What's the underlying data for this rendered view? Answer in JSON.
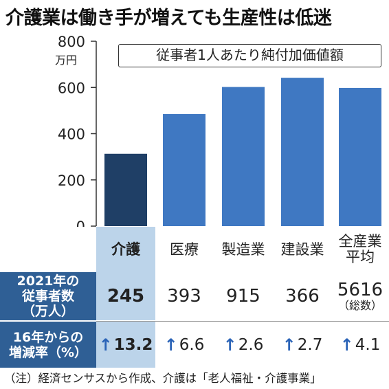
{
  "title": "介護業は働き手が増えても生産性は低迷",
  "chart_data": {
    "type": "bar",
    "title": "介護業は働き手が増えても生産性は低迷",
    "legend_text": "従事者1人あたり純付加価値額",
    "ylabel": "",
    "y_unit": "万円",
    "ylim": [
      0,
      800
    ],
    "yticks": [
      "0",
      "200",
      "400",
      "600",
      "800"
    ],
    "categories": [
      "介護",
      "医療",
      "製造業",
      "建設業",
      "全産業 平均"
    ],
    "values": [
      313,
      485,
      602,
      642,
      598
    ],
    "highlight_index": 0,
    "colors": {
      "highlight": "#1f3f66",
      "normal": "#3f78c2"
    },
    "grid": false
  },
  "table": {
    "header_categories": [
      {
        "line1": "介護",
        "line2": ""
      },
      {
        "line1": "医療",
        "line2": ""
      },
      {
        "line1": "製造業",
        "line2": ""
      },
      {
        "line1": "建設業",
        "line2": ""
      },
      {
        "line1": "全産業",
        "line2": "平均"
      }
    ],
    "workers": {
      "label_lines": [
        "2021年の",
        "従事者数",
        "（万人）"
      ],
      "values": [
        "245",
        "393",
        "915",
        "366",
        "5616"
      ],
      "last_note": "（総数）"
    },
    "growth": {
      "label_lines": [
        "16年からの",
        "増減率（%）"
      ],
      "values": [
        "13.2",
        "6.6",
        "2.6",
        "2.7",
        "4.1"
      ],
      "arrow": "↑"
    }
  },
  "footnote": "（注）経済センサスから作成、介護は「老人福祉・介護事業」",
  "colors": {
    "row_label_bg": "#2f5f95",
    "highlight_col_bg": "#bcd4ea",
    "arrow": "#2a63b7"
  }
}
